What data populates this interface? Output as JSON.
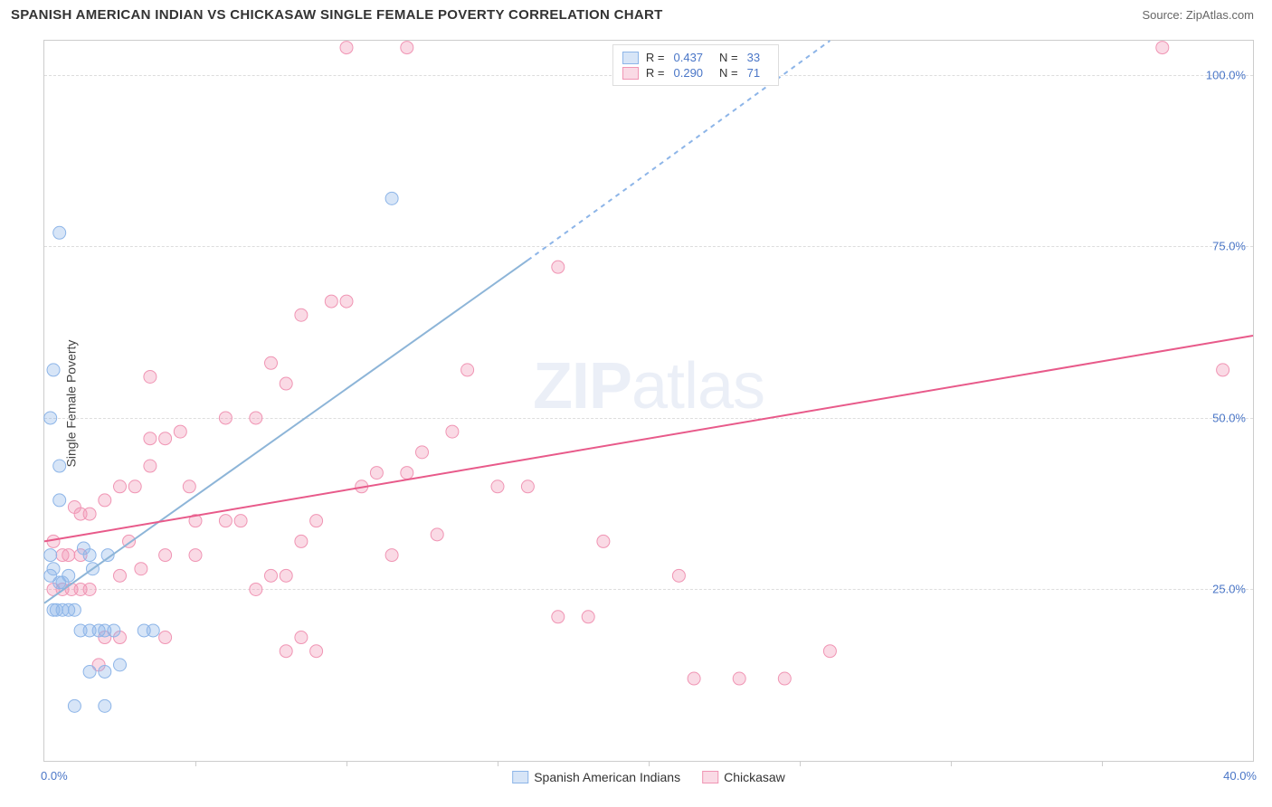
{
  "header": {
    "title": "SPANISH AMERICAN INDIAN VS CHICKASAW SINGLE FEMALE POVERTY CORRELATION CHART",
    "source": "Source: ZipAtlas.com"
  },
  "axes": {
    "ylabel": "Single Female Poverty",
    "xlim": [
      0,
      40
    ],
    "ylim": [
      0,
      105
    ],
    "yticks": [
      25,
      50,
      75,
      100
    ],
    "ytick_labels": [
      "25.0%",
      "50.0%",
      "75.0%",
      "100.0%"
    ],
    "xtick_marks": [
      5,
      10,
      15,
      20,
      25,
      30,
      35
    ],
    "xtick_label_0": "0.0%",
    "xtick_label_max": "40.0%"
  },
  "series": {
    "a": {
      "name": "Spanish American Indians",
      "color": "#8db5e8",
      "fill": "rgba(141,181,232,0.35)",
      "r_value": "0.437",
      "n_value": "33",
      "trend": {
        "x1": 0,
        "y1": 23,
        "x2": 16,
        "y2": 73,
        "dash_x2": 26,
        "dash_y2": 105
      },
      "points": [
        [
          0.3,
          57
        ],
        [
          0.5,
          77
        ],
        [
          0.2,
          50
        ],
        [
          0.5,
          43
        ],
        [
          0.5,
          38
        ],
        [
          0.2,
          30
        ],
        [
          0.2,
          27
        ],
        [
          0.5,
          26
        ],
        [
          0.6,
          26
        ],
        [
          0.8,
          27
        ],
        [
          0.3,
          22
        ],
        [
          0.4,
          22
        ],
        [
          0.6,
          22
        ],
        [
          0.8,
          22
        ],
        [
          1.0,
          22
        ],
        [
          1.3,
          31
        ],
        [
          1.5,
          30
        ],
        [
          1.6,
          28
        ],
        [
          2.1,
          30
        ],
        [
          1.2,
          19
        ],
        [
          1.5,
          19
        ],
        [
          1.8,
          19
        ],
        [
          2.0,
          19
        ],
        [
          2.3,
          19
        ],
        [
          3.3,
          19
        ],
        [
          3.6,
          19
        ],
        [
          1.5,
          13
        ],
        [
          2.0,
          13
        ],
        [
          2.5,
          14
        ],
        [
          0.3,
          28
        ],
        [
          1.0,
          8
        ],
        [
          2.0,
          8
        ],
        [
          11.5,
          82
        ]
      ]
    },
    "b": {
      "name": "Chickasaw",
      "color": "#f095b4",
      "fill": "rgba(240,149,180,0.35)",
      "r_value": "0.290",
      "n_value": "71",
      "trend": {
        "x1": 0,
        "y1": 32,
        "x2": 40,
        "y2": 62
      },
      "points": [
        [
          0.3,
          32
        ],
        [
          0.6,
          30
        ],
        [
          0.8,
          30
        ],
        [
          1.2,
          30
        ],
        [
          0.3,
          25
        ],
        [
          0.6,
          25
        ],
        [
          0.9,
          25
        ],
        [
          1.2,
          25
        ],
        [
          1.5,
          25
        ],
        [
          1.0,
          37
        ],
        [
          1.2,
          36
        ],
        [
          1.5,
          36
        ],
        [
          2.0,
          38
        ],
        [
          2.8,
          32
        ],
        [
          2.5,
          40
        ],
        [
          3.0,
          40
        ],
        [
          3.5,
          43
        ],
        [
          2.5,
          27
        ],
        [
          3.2,
          28
        ],
        [
          4.0,
          30
        ],
        [
          5.0,
          30
        ],
        [
          3.5,
          47
        ],
        [
          4.0,
          47
        ],
        [
          4.5,
          48
        ],
        [
          2.0,
          18
        ],
        [
          2.5,
          18
        ],
        [
          1.8,
          14
        ],
        [
          4.0,
          18
        ],
        [
          5.0,
          35
        ],
        [
          6.0,
          35
        ],
        [
          6.5,
          35
        ],
        [
          3.5,
          56
        ],
        [
          4.8,
          40
        ],
        [
          7.0,
          25
        ],
        [
          7.5,
          27
        ],
        [
          8.0,
          27
        ],
        [
          8.5,
          32
        ],
        [
          9.0,
          35
        ],
        [
          6.0,
          50
        ],
        [
          7.0,
          50
        ],
        [
          7.5,
          58
        ],
        [
          8.0,
          55
        ],
        [
          8.5,
          65
        ],
        [
          9.5,
          67
        ],
        [
          10.0,
          67
        ],
        [
          10.0,
          104
        ],
        [
          12.0,
          104
        ],
        [
          10.5,
          40
        ],
        [
          11.0,
          42
        ],
        [
          12.0,
          42
        ],
        [
          12.5,
          45
        ],
        [
          13.5,
          48
        ],
        [
          14.0,
          57
        ],
        [
          15.0,
          40
        ],
        [
          16.0,
          40
        ],
        [
          17.0,
          72
        ],
        [
          11.5,
          30
        ],
        [
          13.0,
          33
        ],
        [
          17.0,
          21
        ],
        [
          18.0,
          21
        ],
        [
          18.5,
          32
        ],
        [
          8.5,
          18
        ],
        [
          8.0,
          16
        ],
        [
          9.0,
          16
        ],
        [
          21.0,
          27
        ],
        [
          21.5,
          12
        ],
        [
          23.0,
          12
        ],
        [
          24.5,
          12
        ],
        [
          26.0,
          16
        ],
        [
          37.0,
          104
        ],
        [
          39.0,
          57
        ]
      ]
    }
  },
  "legend_top": {
    "r_label": "R =",
    "n_label": "N ="
  },
  "styling": {
    "title_color": "#333333",
    "source_color": "#666666",
    "axis_label_color": "#444444",
    "tick_color": "#4a76c7",
    "grid_color": "#dddddd",
    "border_color": "#cccccc",
    "background": "#ffffff",
    "point_radius": 7,
    "line_width": 2,
    "title_fontsize": 15,
    "label_fontsize": 14,
    "tick_fontsize": 13
  },
  "watermark": {
    "zip": "ZIP",
    "atlas": "atlas"
  }
}
